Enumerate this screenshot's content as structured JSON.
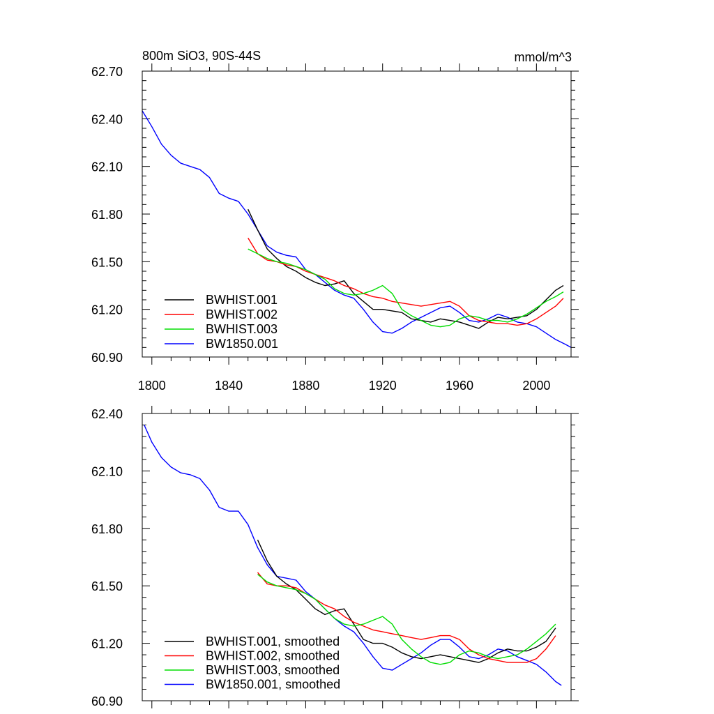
{
  "chart_data": [
    {
      "type": "line",
      "title": "800m SiO3, 90S-44S",
      "units": "mmol/m^3",
      "xlim": [
        1795,
        2018
      ],
      "ylim": [
        60.9,
        62.7
      ],
      "x_ticks": [
        1800,
        1840,
        1880,
        1920,
        1960,
        2000
      ],
      "x_tick_labels": [
        "1800",
        "1840",
        "1880",
        "1920",
        "1960",
        "2000"
      ],
      "y_ticks": [
        60.9,
        61.2,
        61.5,
        61.8,
        62.1,
        62.4,
        62.7
      ],
      "y_tick_labels": [
        "60.90",
        "61.20",
        "61.50",
        "61.80",
        "62.10",
        "62.40",
        "62.70"
      ],
      "legend_position": "bottom-left",
      "series": [
        {
          "name": "BWHIST.001",
          "color": "#000000",
          "x": [
            1850,
            1855,
            1860,
            1865,
            1870,
            1875,
            1880,
            1885,
            1890,
            1895,
            1900,
            1905,
            1910,
            1915,
            1920,
            1925,
            1930,
            1935,
            1940,
            1945,
            1950,
            1955,
            1960,
            1965,
            1970,
            1975,
            1980,
            1985,
            1990,
            1995,
            2000,
            2005,
            2010,
            2014
          ],
          "y": [
            61.83,
            61.7,
            61.58,
            61.52,
            61.47,
            61.44,
            61.4,
            61.37,
            61.35,
            61.36,
            61.38,
            61.3,
            61.25,
            61.2,
            61.2,
            61.19,
            61.18,
            61.14,
            61.13,
            61.12,
            61.14,
            61.13,
            61.12,
            61.1,
            61.08,
            61.12,
            61.15,
            61.14,
            61.15,
            61.16,
            61.2,
            61.26,
            61.32,
            61.35
          ]
        },
        {
          "name": "BWHIST.002",
          "color": "#ff0000",
          "x": [
            1850,
            1855,
            1860,
            1865,
            1870,
            1875,
            1880,
            1885,
            1890,
            1895,
            1900,
            1905,
            1910,
            1915,
            1920,
            1925,
            1930,
            1935,
            1940,
            1945,
            1950,
            1955,
            1960,
            1965,
            1970,
            1975,
            1980,
            1985,
            1990,
            1995,
            2000,
            2005,
            2010,
            2014
          ],
          "y": [
            61.65,
            61.55,
            61.51,
            61.5,
            61.48,
            61.47,
            61.44,
            61.42,
            61.4,
            61.38,
            61.35,
            61.33,
            61.3,
            61.28,
            61.27,
            61.25,
            61.24,
            61.23,
            61.22,
            61.23,
            61.24,
            61.25,
            61.22,
            61.16,
            61.13,
            61.12,
            61.11,
            61.11,
            61.1,
            61.11,
            61.14,
            61.18,
            61.22,
            61.27
          ]
        },
        {
          "name": "BWHIST.003",
          "color": "#00dd00",
          "x": [
            1850,
            1855,
            1860,
            1865,
            1870,
            1875,
            1880,
            1885,
            1890,
            1895,
            1900,
            1905,
            1910,
            1915,
            1920,
            1925,
            1930,
            1935,
            1940,
            1945,
            1950,
            1955,
            1960,
            1965,
            1970,
            1975,
            1980,
            1985,
            1990,
            1995,
            2000,
            2005,
            2010,
            2014
          ],
          "y": [
            61.58,
            61.55,
            61.52,
            61.5,
            61.49,
            61.47,
            61.45,
            61.42,
            61.39,
            61.33,
            61.3,
            61.29,
            61.3,
            61.32,
            61.35,
            61.3,
            61.2,
            61.16,
            61.13,
            61.1,
            61.09,
            61.1,
            61.14,
            61.16,
            61.15,
            61.13,
            61.13,
            61.12,
            61.14,
            61.17,
            61.21,
            61.25,
            61.28,
            61.31
          ]
        },
        {
          "name": "BW1850.001",
          "color": "#0000ff",
          "x": [
            1795,
            1800,
            1805,
            1810,
            1815,
            1820,
            1825,
            1830,
            1835,
            1840,
            1845,
            1850,
            1855,
            1860,
            1865,
            1870,
            1875,
            1880,
            1885,
            1890,
            1895,
            1900,
            1905,
            1910,
            1915,
            1920,
            1925,
            1930,
            1935,
            1940,
            1945,
            1950,
            1955,
            1960,
            1965,
            1970,
            1975,
            1980,
            1985,
            1990,
            1995,
            2000,
            2005,
            2010,
            2015,
            2018
          ],
          "y": [
            62.45,
            62.35,
            62.24,
            62.17,
            62.12,
            62.1,
            62.08,
            62.03,
            61.93,
            61.9,
            61.88,
            61.8,
            61.7,
            61.6,
            61.56,
            61.54,
            61.53,
            61.45,
            61.42,
            61.37,
            61.32,
            61.29,
            61.27,
            61.2,
            61.12,
            61.06,
            61.05,
            61.08,
            61.12,
            61.15,
            61.18,
            61.21,
            61.22,
            61.18,
            61.13,
            61.12,
            61.14,
            61.17,
            61.15,
            61.12,
            61.11,
            61.09,
            61.05,
            61.01,
            60.98,
            60.96
          ]
        }
      ]
    },
    {
      "type": "line",
      "xlim": [
        1795,
        2018
      ],
      "ylim": [
        60.9,
        62.4
      ],
      "x_ticks": [
        1800,
        1840,
        1880,
        1920,
        1960,
        2000
      ],
      "y_ticks": [
        60.9,
        61.2,
        61.5,
        61.8,
        62.1,
        62.4
      ],
      "y_tick_labels": [
        "60.90",
        "61.20",
        "61.50",
        "61.80",
        "62.10",
        "62.40"
      ],
      "legend_position": "bottom-left",
      "series": [
        {
          "name": "BWHIST.001, smoothed",
          "color": "#000000",
          "x": [
            1855,
            1860,
            1865,
            1870,
            1875,
            1880,
            1885,
            1890,
            1895,
            1900,
            1905,
            1910,
            1915,
            1920,
            1925,
            1930,
            1935,
            1940,
            1945,
            1950,
            1955,
            1960,
            1965,
            1970,
            1975,
            1980,
            1985,
            1990,
            1995,
            2000,
            2005,
            2010
          ],
          "y": [
            61.74,
            61.63,
            61.55,
            61.51,
            61.48,
            61.43,
            61.38,
            61.35,
            61.37,
            61.38,
            61.3,
            61.22,
            61.2,
            61.2,
            61.18,
            61.15,
            61.13,
            61.12,
            61.13,
            61.14,
            61.13,
            61.12,
            61.11,
            61.1,
            61.12,
            61.15,
            61.17,
            61.16,
            61.16,
            61.18,
            61.21,
            61.28
          ]
        },
        {
          "name": "BWHIST.002, smoothed",
          "color": "#ff0000",
          "x": [
            1855,
            1860,
            1865,
            1870,
            1875,
            1880,
            1885,
            1890,
            1895,
            1900,
            1905,
            1910,
            1915,
            1920,
            1925,
            1930,
            1935,
            1940,
            1945,
            1950,
            1955,
            1960,
            1965,
            1970,
            1975,
            1980,
            1985,
            1990,
            1995,
            2000,
            2005,
            2010
          ],
          "y": [
            61.57,
            61.51,
            61.5,
            61.5,
            61.49,
            61.46,
            61.43,
            61.4,
            61.38,
            61.34,
            61.31,
            61.29,
            61.27,
            61.26,
            61.25,
            61.24,
            61.23,
            61.22,
            61.23,
            61.24,
            61.24,
            61.22,
            61.17,
            61.14,
            61.12,
            61.11,
            61.1,
            61.1,
            61.1,
            61.12,
            61.17,
            61.24
          ]
        },
        {
          "name": "BWHIST.003, smoothed",
          "color": "#00dd00",
          "x": [
            1855,
            1860,
            1865,
            1870,
            1875,
            1880,
            1885,
            1890,
            1895,
            1900,
            1905,
            1910,
            1915,
            1920,
            1925,
            1930,
            1935,
            1940,
            1945,
            1950,
            1955,
            1960,
            1965,
            1970,
            1975,
            1980,
            1985,
            1990,
            1995,
            2000,
            2005,
            2010
          ],
          "y": [
            61.56,
            61.52,
            61.5,
            61.49,
            61.48,
            61.46,
            61.43,
            61.38,
            61.33,
            61.3,
            61.29,
            61.3,
            61.32,
            61.34,
            61.3,
            61.22,
            61.17,
            61.13,
            61.1,
            61.09,
            61.1,
            61.14,
            61.16,
            61.15,
            61.13,
            61.12,
            61.13,
            61.14,
            61.17,
            61.21,
            61.25,
            61.3
          ]
        },
        {
          "name": "BW1850.001, smoothed",
          "color": "#0000ff",
          "x": [
            1796,
            1800,
            1805,
            1810,
            1815,
            1820,
            1825,
            1830,
            1835,
            1840,
            1845,
            1850,
            1855,
            1860,
            1865,
            1870,
            1875,
            1880,
            1885,
            1890,
            1895,
            1900,
            1905,
            1910,
            1915,
            1920,
            1925,
            1930,
            1935,
            1940,
            1945,
            1950,
            1955,
            1960,
            1965,
            1970,
            1975,
            1980,
            1985,
            1990,
            1995,
            2000,
            2005,
            2010,
            2013
          ],
          "y": [
            62.34,
            62.25,
            62.17,
            62.12,
            62.09,
            62.08,
            62.06,
            62.0,
            61.91,
            61.89,
            61.89,
            61.82,
            61.7,
            61.61,
            61.55,
            61.54,
            61.53,
            61.47,
            61.43,
            61.38,
            61.33,
            61.29,
            61.26,
            61.2,
            61.13,
            61.07,
            61.06,
            61.09,
            61.12,
            61.15,
            61.19,
            61.22,
            61.22,
            61.18,
            61.13,
            61.12,
            61.14,
            61.17,
            61.16,
            61.13,
            61.11,
            61.09,
            61.05,
            61.0,
            60.98
          ]
        }
      ]
    }
  ]
}
